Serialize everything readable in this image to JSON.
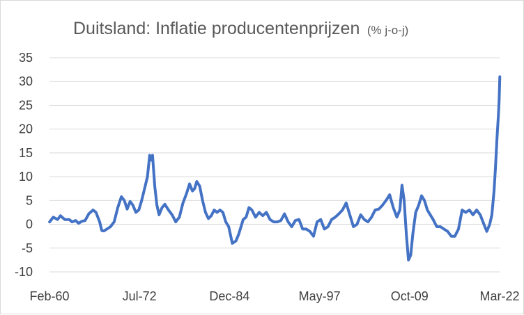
{
  "chart_data": {
    "type": "line",
    "title": "Duitsland: Inflatie producentenprijzen",
    "subtitle": "(% j-o-j)",
    "xlabel": "",
    "ylabel": "",
    "ylim": [
      -10,
      35
    ],
    "y_ticks": [
      35,
      30,
      25,
      20,
      15,
      10,
      5,
      0,
      -5,
      -10
    ],
    "x_tick_labels": [
      "Feb-60",
      "Jul-72",
      "Dec-84",
      "May-97",
      "Oct-09",
      "Mar-22"
    ],
    "x_ticks_decimal_year": [
      1960.083,
      1972.5,
      1984.917,
      1997.333,
      2009.75,
      2022.167
    ],
    "grid": "horizontal",
    "legend": "none",
    "color": "#4472C4",
    "series": [
      {
        "x": [
          1960.1,
          1960.6,
          1961.2,
          1961.6,
          1962.2,
          1962.8,
          1963.2,
          1963.7,
          1964.1,
          1964.5,
          1965.0,
          1965.5,
          1966.1,
          1966.5,
          1967.0,
          1967.3,
          1967.6,
          1968.0,
          1968.5,
          1969.0,
          1969.5,
          1970.0,
          1970.4,
          1970.8,
          1971.2,
          1971.6,
          1972.0,
          1972.4,
          1972.8,
          1973.2,
          1973.6,
          1973.9,
          1974.1,
          1974.3,
          1974.6,
          1974.9,
          1975.2,
          1975.6,
          1976.0,
          1976.5,
          1977.0,
          1977.5,
          1978.0,
          1978.5,
          1979.0,
          1979.4,
          1979.8,
          1980.1,
          1980.4,
          1980.8,
          1981.2,
          1981.6,
          1982.0,
          1982.4,
          1982.8,
          1983.2,
          1983.6,
          1984.0,
          1984.4,
          1984.8,
          1985.3,
          1985.8,
          1986.2,
          1986.5,
          1986.8,
          1987.2,
          1987.6,
          1988.0,
          1988.5,
          1989.0,
          1989.5,
          1990.0,
          1990.5,
          1991.0,
          1991.5,
          1992.0,
          1992.5,
          1993.0,
          1993.5,
          1994.0,
          1994.5,
          1995.0,
          1995.5,
          1996.0,
          1996.5,
          1997.0,
          1997.5,
          1998.0,
          1998.5,
          1999.0,
          1999.5,
          2000.0,
          2000.5,
          2001.0,
          2001.5,
          2002.0,
          2002.5,
          2003.0,
          2003.5,
          2004.0,
          2004.5,
          2005.0,
          2005.5,
          2006.0,
          2006.5,
          2007.0,
          2007.5,
          2008.0,
          2008.4,
          2008.7,
          2009.0,
          2009.3,
          2009.6,
          2009.9,
          2010.2,
          2010.6,
          2011.0,
          2011.4,
          2011.8,
          2012.2,
          2012.6,
          2013.0,
          2013.5,
          2014.0,
          2014.5,
          2015.0,
          2015.5,
          2016.0,
          2016.5,
          2017.0,
          2017.5,
          2018.0,
          2018.5,
          2019.0,
          2019.5,
          2020.0,
          2020.4,
          2020.8,
          2021.1,
          2021.4,
          2021.6,
          2021.8,
          2022.0,
          2022.1,
          2022.2
        ],
        "values": [
          0.5,
          1.5,
          1.0,
          1.8,
          1.0,
          1.0,
          0.5,
          0.8,
          0.2,
          0.6,
          0.8,
          2.2,
          3.0,
          2.5,
          0.5,
          -1.3,
          -1.4,
          -1.0,
          -0.5,
          0.5,
          3.5,
          5.8,
          5.0,
          3.2,
          4.8,
          4.0,
          2.5,
          3.0,
          5.0,
          7.5,
          10.0,
          14.5,
          13.5,
          14.5,
          8.0,
          4.0,
          2.0,
          3.5,
          4.2,
          3.0,
          2.0,
          0.5,
          1.5,
          4.5,
          6.5,
          8.5,
          7.0,
          7.5,
          9.0,
          8.0,
          5.0,
          2.5,
          1.2,
          1.8,
          3.0,
          2.5,
          3.0,
          2.5,
          0.5,
          -0.5,
          -4.0,
          -3.5,
          -2.0,
          -0.5,
          1.0,
          1.5,
          3.5,
          3.0,
          1.5,
          2.5,
          1.8,
          2.5,
          1.0,
          0.5,
          0.5,
          0.8,
          2.2,
          0.5,
          -0.5,
          0.8,
          1.0,
          -1.0,
          -1.0,
          -1.5,
          -2.5,
          0.5,
          1.0,
          -1.0,
          -0.5,
          1.0,
          1.5,
          2.2,
          3.0,
          4.5,
          2.0,
          -0.5,
          0.0,
          2.0,
          1.0,
          0.5,
          1.5,
          3.0,
          3.2,
          4.0,
          5.0,
          6.2,
          3.5,
          1.5,
          3.0,
          8.2,
          5.0,
          -2.0,
          -7.5,
          -6.5,
          -2.0,
          2.5,
          4.0,
          6.0,
          5.0,
          3.0,
          2.0,
          1.0,
          -0.5,
          -0.5,
          -1.0,
          -1.5,
          -2.5,
          -2.5,
          -1.0,
          3.0,
          2.5,
          3.0,
          2.0,
          3.0,
          2.0,
          0.0,
          -1.5,
          0.0,
          2.0,
          7.0,
          12.0,
          18.0,
          23.0,
          26.0,
          31.0
        ]
      }
    ]
  }
}
